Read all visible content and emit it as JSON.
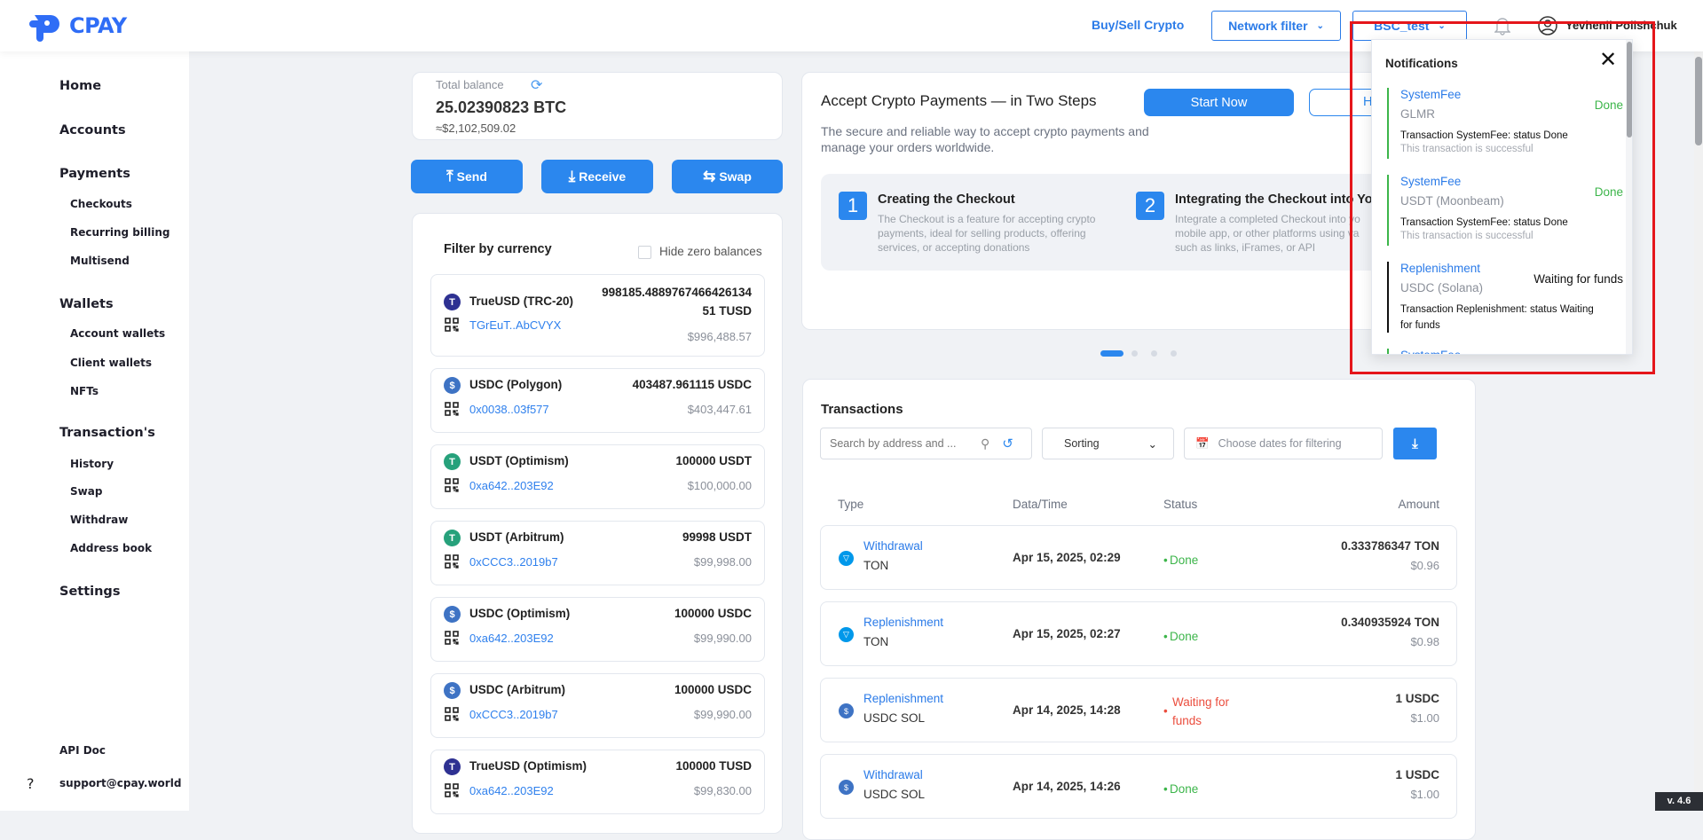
{
  "header": {
    "logo_text": "CPAY",
    "buy_sell": "Buy/Sell Crypto",
    "network_filter": "Network filter",
    "network_selected": "BSC_test",
    "user_name": "Yevhenii Polishchuk"
  },
  "sidebar": {
    "items": [
      {
        "label": "Home",
        "icon": "home-icon",
        "level": "main"
      },
      {
        "label": "Accounts",
        "icon": "accounts-icon",
        "level": "main"
      },
      {
        "label": "Payments",
        "icon": "card-icon",
        "level": "main"
      },
      {
        "label": "Checkouts",
        "level": "sub"
      },
      {
        "label": "Recurring billing",
        "level": "sub"
      },
      {
        "label": "Multisend",
        "level": "sub"
      },
      {
        "label": "Wallets",
        "icon": "wallet-icon",
        "level": "main"
      },
      {
        "label": "Account wallets",
        "level": "sub"
      },
      {
        "label": "Client wallets",
        "level": "sub"
      },
      {
        "label": "NFTs",
        "level": "sub"
      },
      {
        "label": "Transaction's",
        "icon": "history-icon",
        "level": "main"
      },
      {
        "label": "History",
        "level": "sub"
      },
      {
        "label": "Swap",
        "level": "sub"
      },
      {
        "label": "Withdraw",
        "level": "sub"
      },
      {
        "label": "Address book",
        "level": "sub"
      },
      {
        "label": "Settings",
        "icon": "gear-icon",
        "level": "main"
      }
    ],
    "footer": [
      {
        "label": "API Doc",
        "icon": "document-icon"
      },
      {
        "label": "support@cpay.world",
        "icon": "help-icon"
      }
    ]
  },
  "balance": {
    "label": "Total balance",
    "amount": "25.02390823 BTC",
    "usd": "≈$2,102,509.02"
  },
  "actions": {
    "send": "Send",
    "receive": "Receive",
    "swap": "Swap"
  },
  "currency_filter": {
    "title": "Filter by currency",
    "hide_zero": "Hide zero balances",
    "hide_zero_checked": false,
    "items": [
      {
        "name": "TrueUSD (TRC-20)",
        "address": "TGrEuT..AbCVYX",
        "amount_line1": "998185.4889767466426134",
        "amount_line2": "51 TUSD",
        "usd": "$996,488.57",
        "icon": "T",
        "color": "#2e3192"
      },
      {
        "name": "USDC (Polygon)",
        "address": "0x0038..03f577",
        "amount_line1": "403487.961115 USDC",
        "usd": "$403,447.61",
        "icon": "$",
        "color": "#3e73c4"
      },
      {
        "name": "USDT (Optimism)",
        "address": "0xa642..203E92",
        "amount_line1": "100000 USDT",
        "usd": "$100,000.00",
        "icon": "T",
        "color": "#26a17b"
      },
      {
        "name": "USDT (Arbitrum)",
        "address": "0xCCC3..2019b7",
        "amount_line1": "99998 USDT",
        "usd": "$99,998.00",
        "icon": "T",
        "color": "#26a17b"
      },
      {
        "name": "USDC (Optimism)",
        "address": "0xa642..203E92",
        "amount_line1": "100000 USDC",
        "usd": "$99,990.00",
        "icon": "$",
        "color": "#3e73c4"
      },
      {
        "name": "USDC (Arbitrum)",
        "address": "0xCCC3..2019b7",
        "amount_line1": "100000 USDC",
        "usd": "$99,990.00",
        "icon": "$",
        "color": "#3e73c4"
      },
      {
        "name": "TrueUSD (Optimism)",
        "address": "0xa642..203E92",
        "amount_line1": "100000 TUSD",
        "usd": "$99,830.00",
        "icon": "T",
        "color": "#2e3192"
      }
    ]
  },
  "promo": {
    "title": "Accept Crypto Payments — in Two Steps",
    "subtitle": "The secure and reliable way to accept crypto payments and manage your orders worldwide.",
    "start_now": "Start Now",
    "how_button": "How",
    "steps": [
      {
        "number": "1",
        "title": "Creating the Checkout",
        "desc": "The Checkout is a feature for accepting crypto payments, ideal for selling products, offering services, or accepting donations"
      },
      {
        "number": "2",
        "title": "Integrating the Checkout into Yo",
        "desc": "Integrate a completed Checkout into yo mobile app, or other platforms using va such as links, iFrames, or API"
      }
    ],
    "carousel_active": 1,
    "carousel_count": 4
  },
  "transactions": {
    "title": "Transactions",
    "search_placeholder": "Search by address and ...",
    "sorting": "Sorting",
    "dates_placeholder": "Choose dates for filtering",
    "columns": [
      "Type",
      "Data/Time",
      "Status",
      "Amount"
    ],
    "rows": [
      {
        "type": "Withdrawal",
        "currency": "TON",
        "date": "Apr 15, 2025, 02:29",
        "status": "Done",
        "amount": "0.333786347 TON",
        "usd": "$0.96",
        "icon": "ton"
      },
      {
        "type": "Replenishment",
        "currency": "TON",
        "date": "Apr 15, 2025, 02:27",
        "status": "Done",
        "amount": "0.340935924 TON",
        "usd": "$0.98",
        "icon": "ton"
      },
      {
        "type": "Replenishment",
        "currency": "USDC SOL",
        "date": "Apr 14, 2025, 14:28",
        "status": "Waiting for funds",
        "amount": "1 USDC",
        "usd": "$1.00",
        "icon": "usdc"
      },
      {
        "type": "Withdrawal",
        "currency": "USDC SOL",
        "date": "Apr 14, 2025, 14:26",
        "status": "Done",
        "amount": "1 USDC",
        "usd": "$1.00",
        "icon": "usdc"
      }
    ]
  },
  "notifications": {
    "title": "Notifications",
    "items": [
      {
        "title": "SystemFee",
        "currency": "GLMR",
        "message": "Transaction SystemFee: status Done",
        "sub": "This transaction is successful",
        "status": "Done",
        "color": "#3cb54a"
      },
      {
        "title": "SystemFee",
        "currency": "USDT (Moonbeam)",
        "message": "Transaction SystemFee: status Done",
        "sub": "This transaction is successful",
        "status": "Done",
        "color": "#3cb54a"
      },
      {
        "title": "Replenishment",
        "currency": "USDC (Solana)",
        "message": "Transaction Replenishment: status Waiting for funds",
        "status": "Waiting for funds",
        "color": "#111111"
      },
      {
        "title": "SystemFee",
        "color": "#3cb54a"
      }
    ]
  },
  "colors": {
    "accent": "#2b87ee",
    "done": "#3cb54a",
    "waiting": "#eb4d3d",
    "highlight": "#e5161b"
  },
  "version": "v. 4.6"
}
